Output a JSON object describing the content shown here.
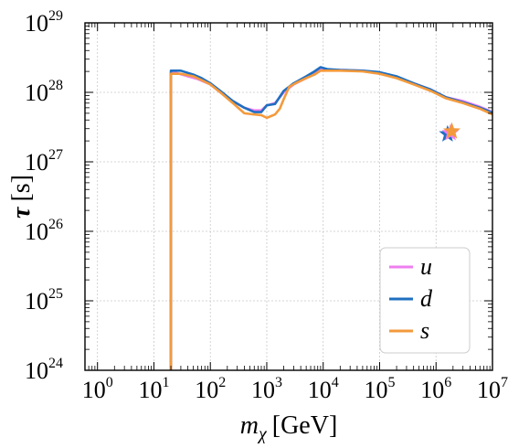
{
  "chart_data": {
    "type": "line",
    "title": "",
    "xlabel": "m_χ [GeV]",
    "xlabel_parts": {
      "var": "m",
      "sub": "χ",
      "unit": "[GeV]"
    },
    "ylabel": "τ [s]",
    "ylabel_parts": {
      "var": "τ",
      "unit": "[s]"
    },
    "xscale": "log",
    "yscale": "log",
    "xlim": [
      0.6,
      10000000
    ],
    "ylim": [
      1e+24,
      1e+29
    ],
    "grid": true,
    "legend_position": "lower-right",
    "xticks": [
      {
        "value": 1,
        "base": "10",
        "exp": "0"
      },
      {
        "value": 10,
        "base": "10",
        "exp": "1"
      },
      {
        "value": 100,
        "base": "10",
        "exp": "2"
      },
      {
        "value": 1000,
        "base": "10",
        "exp": "3"
      },
      {
        "value": 10000,
        "base": "10",
        "exp": "4"
      },
      {
        "value": 100000,
        "base": "10",
        "exp": "5"
      },
      {
        "value": 1000000,
        "base": "10",
        "exp": "6"
      },
      {
        "value": 10000000,
        "base": "10",
        "exp": "7"
      }
    ],
    "yticks": [
      {
        "value": 1e+24,
        "base": "10",
        "exp": "24"
      },
      {
        "value": 1e+25,
        "base": "10",
        "exp": "25"
      },
      {
        "value": 1e+26,
        "base": "10",
        "exp": "26"
      },
      {
        "value": 1e+27,
        "base": "10",
        "exp": "27"
      },
      {
        "value": 1e+28,
        "base": "10",
        "exp": "28"
      },
      {
        "value": 1e+29,
        "base": "10",
        "exp": "29"
      }
    ],
    "series": [
      {
        "name": "u",
        "color": "#ee7ef0",
        "points": [
          [
            20,
            1e+24
          ],
          [
            20,
            1.9e+28
          ],
          [
            25,
            1.9e+28
          ],
          [
            40,
            1.7e+28
          ],
          [
            60,
            1.55e+28
          ],
          [
            100,
            1.3e+28
          ],
          [
            150,
            1e+28
          ],
          [
            250,
            7.5e+27
          ],
          [
            400,
            6e+27
          ],
          [
            600,
            5.5e+27
          ],
          [
            800,
            5.5e+27
          ],
          [
            1000,
            6.5e+27
          ],
          [
            1400,
            7e+27
          ],
          [
            2000,
            1e+28
          ],
          [
            3000,
            1.3e+28
          ],
          [
            5000,
            1.6e+28
          ],
          [
            7000,
            1.9e+28
          ],
          [
            9000,
            2.2e+28
          ],
          [
            12000,
            2.1e+28
          ],
          [
            20000,
            2.1e+28
          ],
          [
            50000,
            2.05e+28
          ],
          [
            100000,
            1.9e+28
          ],
          [
            200000,
            1.65e+28
          ],
          [
            400000,
            1.35e+28
          ],
          [
            800000,
            1.1e+28
          ],
          [
            1500000,
            8.5e+27
          ],
          [
            3000000,
            7.5e+27
          ],
          [
            6000000,
            6.2e+27
          ],
          [
            10000000,
            5.2e+27
          ]
        ]
      },
      {
        "name": "d",
        "color": "#1f6fc0",
        "points": [
          [
            20,
            1e+24
          ],
          [
            20,
            2.05e+28
          ],
          [
            30,
            2.05e+28
          ],
          [
            50,
            1.8e+28
          ],
          [
            70,
            1.6e+28
          ],
          [
            100,
            1.35e+28
          ],
          [
            150,
            1.05e+28
          ],
          [
            250,
            7.5e+27
          ],
          [
            400,
            6e+27
          ],
          [
            600,
            5.2e+27
          ],
          [
            800,
            5.2e+27
          ],
          [
            1000,
            6.5e+27
          ],
          [
            1400,
            6.8e+27
          ],
          [
            2000,
            1.05e+28
          ],
          [
            3000,
            1.35e+28
          ],
          [
            5000,
            1.7e+28
          ],
          [
            7000,
            2e+28
          ],
          [
            9000,
            2.3e+28
          ],
          [
            12000,
            2.15e+28
          ],
          [
            20000,
            2.1e+28
          ],
          [
            50000,
            2.05e+28
          ],
          [
            100000,
            1.95e+28
          ],
          [
            200000,
            1.7e+28
          ],
          [
            400000,
            1.35e+28
          ],
          [
            800000,
            1.1e+28
          ],
          [
            1500000,
            8.5e+27
          ],
          [
            3000000,
            7.2e+27
          ],
          [
            6000000,
            6e+27
          ],
          [
            10000000,
            5.1e+27
          ]
        ]
      },
      {
        "name": "s",
        "color": "#f39a3c",
        "points": [
          [
            20,
            1e+24
          ],
          [
            20,
            1.85e+28
          ],
          [
            30,
            1.85e+28
          ],
          [
            50,
            1.7e+28
          ],
          [
            70,
            1.5e+28
          ],
          [
            100,
            1.3e+28
          ],
          [
            150,
            1e+28
          ],
          [
            250,
            7e+27
          ],
          [
            400,
            5e+27
          ],
          [
            600,
            4.8e+27
          ],
          [
            800,
            4.7e+27
          ],
          [
            1000,
            4.3e+27
          ],
          [
            1400,
            4.8e+27
          ],
          [
            1700,
            5.8e+27
          ],
          [
            2000,
            8e+27
          ],
          [
            2500,
            1.2e+28
          ],
          [
            3500,
            1.4e+28
          ],
          [
            5000,
            1.6e+28
          ],
          [
            7000,
            1.8e+28
          ],
          [
            9000,
            2.05e+28
          ],
          [
            20000,
            2.05e+28
          ],
          [
            50000,
            2e+28
          ],
          [
            100000,
            1.85e+28
          ],
          [
            200000,
            1.6e+28
          ],
          [
            400000,
            1.3e+28
          ],
          [
            800000,
            1.05e+28
          ],
          [
            1500000,
            8.2e+27
          ],
          [
            3000000,
            7e+27
          ],
          [
            6000000,
            5.8e+27
          ],
          [
            10000000,
            4.8e+27
          ]
        ]
      }
    ],
    "markers": [
      {
        "series": "d",
        "shape": "star",
        "x": 1600000,
        "y": 2.5e+27,
        "color": "#1f6fc0"
      },
      {
        "series": "u",
        "shape": "star",
        "x": 1800000,
        "y": 2.6e+27,
        "color": "#ee7ef0"
      },
      {
        "series": "s",
        "shape": "star",
        "x": 1900000,
        "y": 2.75e+27,
        "color": "#f39a3c"
      }
    ]
  }
}
